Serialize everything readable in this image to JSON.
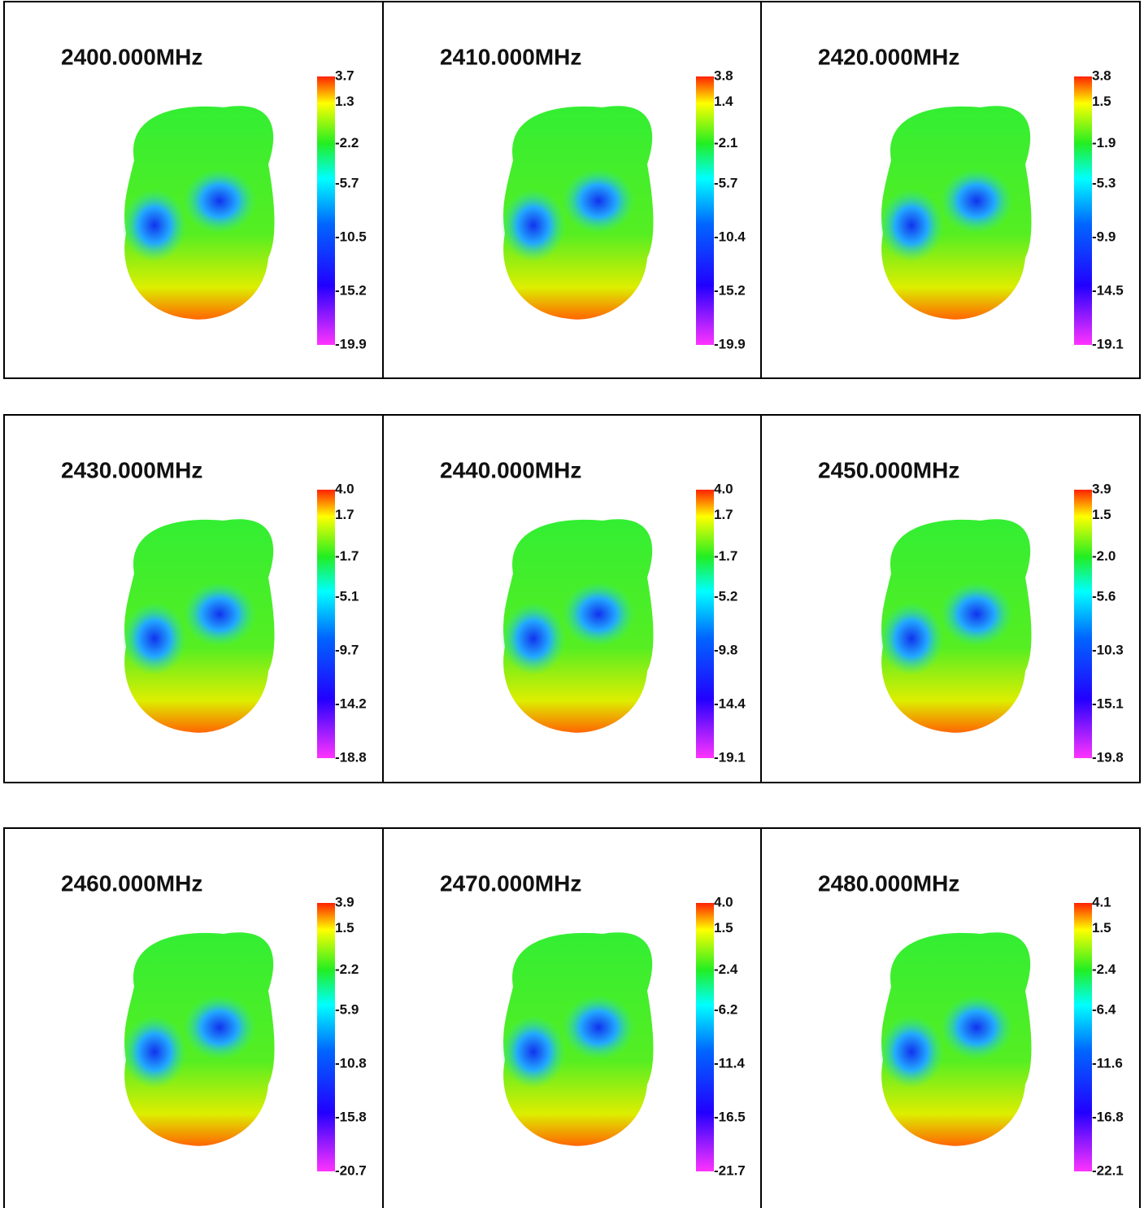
{
  "panels": [
    {
      "title": "2400.000MHz",
      "scale": [
        "3.7",
        "1.3",
        "-2.2",
        "-5.7",
        "-10.5",
        "-15.2",
        "-19.9"
      ]
    },
    {
      "title": "2410.000MHz",
      "scale": [
        "3.8",
        "1.4",
        "-2.1",
        "-5.7",
        "-10.4",
        "-15.2",
        "-19.9"
      ]
    },
    {
      "title": "2420.000MHz",
      "scale": [
        "3.8",
        "1.5",
        "-1.9",
        "-5.3",
        "-9.9",
        "-14.5",
        "-19.1"
      ]
    },
    {
      "title": "2430.000MHz",
      "scale": [
        "4.0",
        "1.7",
        "-1.7",
        "-5.1",
        "-9.7",
        "-14.2",
        "-18.8"
      ]
    },
    {
      "title": "2440.000MHz",
      "scale": [
        "4.0",
        "1.7",
        "-1.7",
        "-5.2",
        "-9.8",
        "-14.4",
        "-19.1"
      ]
    },
    {
      "title": "2450.000MHz",
      "scale": [
        "3.9",
        "1.5",
        "-2.0",
        "-5.6",
        "-10.3",
        "-15.1",
        "-19.8"
      ]
    },
    {
      "title": "2460.000MHz",
      "scale": [
        "3.9",
        "1.5",
        "-2.2",
        "-5.9",
        "-10.8",
        "-15.8",
        "-20.7"
      ]
    },
    {
      "title": "2470.000MHz",
      "scale": [
        "4.0",
        "1.5",
        "-2.4",
        "-6.2",
        "-11.4",
        "-16.5",
        "-21.7"
      ]
    },
    {
      "title": "2480.000MHz",
      "scale": [
        "4.1",
        "1.5",
        "-2.4",
        "-6.4",
        "-11.6",
        "-16.8",
        "-22.1"
      ]
    }
  ]
}
